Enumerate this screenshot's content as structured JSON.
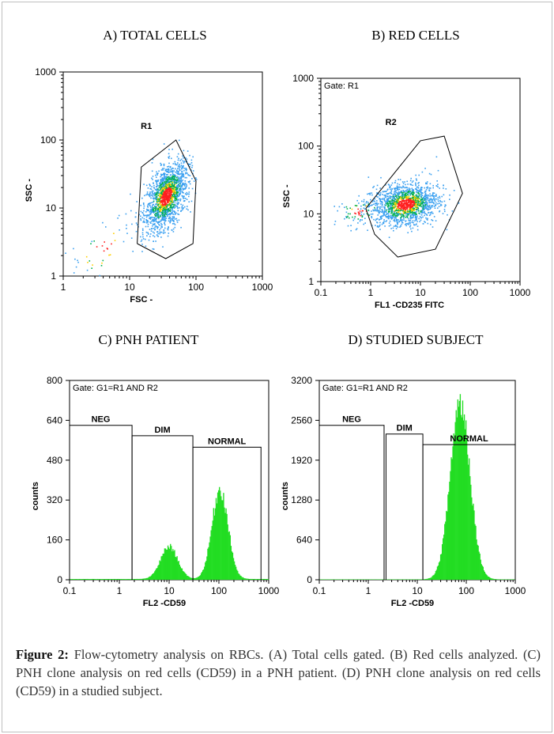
{
  "caption": {
    "label": "Figure 2:",
    "text": "Flow-cytometry analysis on RBCs. (A) Total cells gated. (B) Red cells analyzed. (C) PNH clone analysis on red cells (CD59) in a PNH patient. (D) PNH clone analysis on red cells (CD59) in a studied subject."
  },
  "colors": {
    "histogram": "#22dd22",
    "density_low": "#3aa0f0",
    "density_mid": "#00b050",
    "density_high": "#ff2020",
    "density_peak": "#ffd000"
  },
  "chart_data": [
    {
      "type": "scatter",
      "title": "A) TOTAL CELLS",
      "xlabel": "FSC -",
      "ylabel": "SSC -",
      "x_scale": "log",
      "y_scale": "log",
      "xlim": [
        1,
        1000
      ],
      "ylim": [
        1,
        1000
      ],
      "x_ticks": [
        "1",
        "10",
        "100",
        "1000"
      ],
      "y_ticks": [
        "1",
        "10",
        "100",
        "1000"
      ],
      "gate_label": "",
      "clusters": [
        {
          "center": [
            35,
            15
          ],
          "spread": [
            0.16,
            0.21
          ],
          "tilt": 0.75,
          "n": 1700
        },
        {
          "center": [
            4,
            2.5
          ],
          "spread": [
            0.3,
            0.25
          ],
          "tilt": 0.6,
          "n": 45
        }
      ],
      "regions": [
        {
          "name": "R1",
          "polygon": [
            [
              13,
              3
            ],
            [
              35,
              1.8
            ],
            [
              90,
              3
            ],
            [
              100,
              25
            ],
            [
              50,
              100
            ],
            [
              15,
              40
            ],
            [
              13,
              3
            ]
          ]
        }
      ]
    },
    {
      "type": "scatter",
      "title": "B) RED CELLS",
      "xlabel": "FL1 -CD235 FITC",
      "ylabel": "SSC -",
      "x_scale": "log",
      "y_scale": "log",
      "xlim": [
        0.1,
        1000
      ],
      "ylim": [
        1,
        1000
      ],
      "x_ticks": [
        "0.1",
        "1",
        "10",
        "100",
        "1000"
      ],
      "y_ticks": [
        "1",
        "10",
        "100",
        "1000"
      ],
      "gate_label": "Gate: R1",
      "clusters": [
        {
          "center": [
            5,
            14
          ],
          "spread": [
            0.32,
            0.15
          ],
          "tilt": 0.1,
          "n": 1500
        },
        {
          "center": [
            0.6,
            11
          ],
          "spread": [
            0.25,
            0.12
          ],
          "tilt": 0.0,
          "n": 80
        }
      ],
      "regions": [
        {
          "name": "R2",
          "polygon": [
            [
              0.8,
              12
            ],
            [
              1.2,
              5
            ],
            [
              3.5,
              2.3
            ],
            [
              20,
              3
            ],
            [
              70,
              20
            ],
            [
              30,
              140
            ],
            [
              10,
              120
            ],
            [
              0.8,
              12
            ]
          ]
        }
      ]
    },
    {
      "type": "histogram",
      "title": "C) PNH PATIENT",
      "xlabel": "FL2 -CD59",
      "ylabel": "counts",
      "x_scale": "log",
      "xlim": [
        0.1,
        1000
      ],
      "ylim": [
        0,
        800
      ],
      "x_ticks": [
        "0.1",
        "1",
        "10",
        "100",
        "1000"
      ],
      "y_ticks": [
        "0",
        "160",
        "320",
        "480",
        "640",
        "800"
      ],
      "gate_label": "Gate: G1=R1 AND R2",
      "peaks": [
        {
          "center": 10,
          "sd_log": 0.17,
          "height": 130
        },
        {
          "center": 105,
          "sd_log": 0.16,
          "height": 360
        }
      ],
      "baseline": 3,
      "markers": [
        {
          "name": "NEG",
          "x0": 0.1,
          "x1": 1.8,
          "level": 620
        },
        {
          "name": "DIM",
          "x0": 1.8,
          "x1": 30,
          "level": 578
        },
        {
          "name": "NORMAL",
          "x0": 30,
          "x1": 700,
          "level": 532
        }
      ]
    },
    {
      "type": "histogram",
      "title": "D) STUDIED SUBJECT",
      "xlabel": "FL2 -CD59",
      "ylabel": "counts",
      "x_scale": "log",
      "xlim": [
        0.1,
        1000
      ],
      "ylim": [
        0,
        3200
      ],
      "x_ticks": [
        "0.1",
        "1",
        "10",
        "100",
        "1000"
      ],
      "y_ticks": [
        "0",
        "640",
        "1280",
        "1920",
        "2560",
        "3200"
      ],
      "gate_label": "Gate: G1=R1 AND R2",
      "peaks": [
        {
          "center": 75,
          "sd_log": 0.2,
          "height": 2850
        }
      ],
      "baseline": 6,
      "markers": [
        {
          "name": "NEG",
          "x0": 0.1,
          "x1": 2.1,
          "level": 2480
        },
        {
          "name": "DIM",
          "x0": 2.3,
          "x1": 13,
          "level": 2340
        },
        {
          "name": "NORMAL",
          "x0": 13,
          "x1": 1000,
          "level": 2170
        }
      ]
    }
  ]
}
